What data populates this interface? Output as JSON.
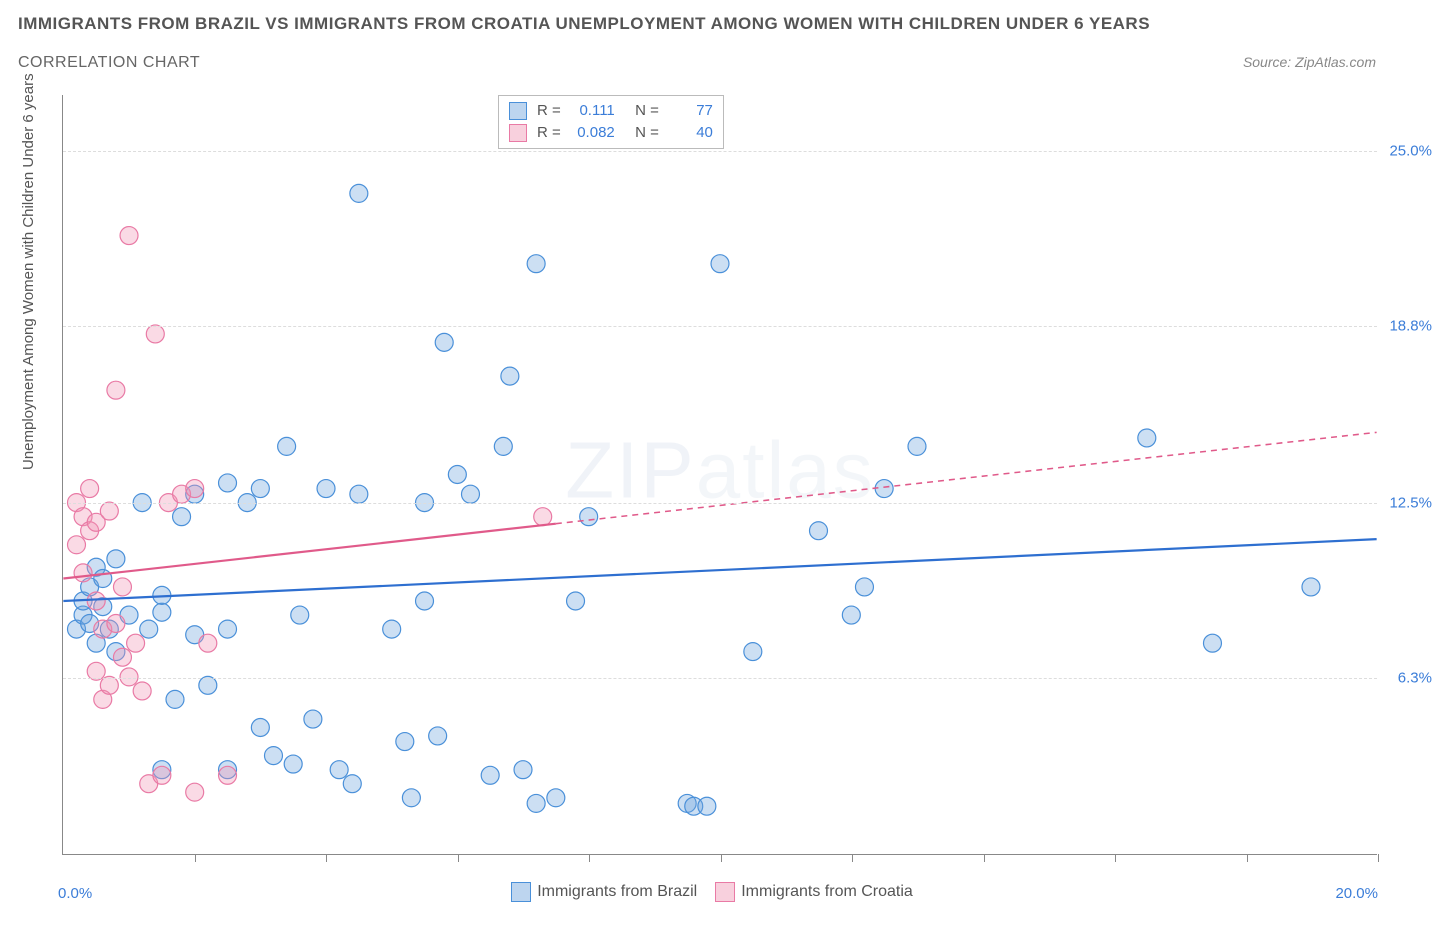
{
  "title": "IMMIGRANTS FROM BRAZIL VS IMMIGRANTS FROM CROATIA UNEMPLOYMENT AMONG WOMEN WITH CHILDREN UNDER 6 YEARS",
  "subtitle": "CORRELATION CHART",
  "source": "Source: ZipAtlas.com",
  "y_axis_label": "Unemployment Among Women with Children Under 6 years",
  "watermark_bold": "ZIP",
  "watermark_thin": "atlas",
  "chart": {
    "type": "scatter",
    "xlim": [
      0,
      20
    ],
    "ylim": [
      0,
      27
    ],
    "x_min_label": "0.0%",
    "x_max_label": "20.0%",
    "x_tick_positions": [
      2,
      4,
      6,
      8,
      10,
      12,
      14,
      16,
      18,
      20
    ],
    "y_ticks": [
      {
        "v": 6.3,
        "label": "6.3%"
      },
      {
        "v": 12.5,
        "label": "12.5%"
      },
      {
        "v": 18.8,
        "label": "18.8%"
      },
      {
        "v": 25.0,
        "label": "25.0%"
      }
    ],
    "background_color": "#ffffff",
    "grid_color": "#dddddd",
    "marker_radius": 9,
    "marker_stroke_width": 1.2,
    "trend_line_width": 2.2,
    "trend_dash": "6 5"
  },
  "series": [
    {
      "name": "Immigrants from Brazil",
      "fill": "rgba(108,162,220,0.35)",
      "stroke": "#4a90d9",
      "swatch_fill": "rgba(108,162,220,0.45)",
      "swatch_border": "#4a90d9",
      "r_value": "0.111",
      "n_value": "77",
      "trend": {
        "x1": 0,
        "y1": 9.0,
        "x2": 20,
        "y2": 11.2,
        "solid_until_x": 20,
        "color": "#2e6fd0"
      },
      "points": [
        [
          0.2,
          8.0
        ],
        [
          0.3,
          8.5
        ],
        [
          0.4,
          8.2
        ],
        [
          0.5,
          7.5
        ],
        [
          0.6,
          8.8
        ],
        [
          0.7,
          8.0
        ],
        [
          0.8,
          7.2
        ],
        [
          0.3,
          9.0
        ],
        [
          0.4,
          9.5
        ],
        [
          0.5,
          10.2
        ],
        [
          0.6,
          9.8
        ],
        [
          0.8,
          10.5
        ],
        [
          1.0,
          8.5
        ],
        [
          1.2,
          12.5
        ],
        [
          1.3,
          8.0
        ],
        [
          1.5,
          8.6
        ],
        [
          1.5,
          9.2
        ],
        [
          1.7,
          5.5
        ],
        [
          1.8,
          12.0
        ],
        [
          2.0,
          7.8
        ],
        [
          2.0,
          12.8
        ],
        [
          2.2,
          6.0
        ],
        [
          1.5,
          3.0
        ],
        [
          2.5,
          3.0
        ],
        [
          2.5,
          13.2
        ],
        [
          2.5,
          8.0
        ],
        [
          2.8,
          12.5
        ],
        [
          3.0,
          13.0
        ],
        [
          3.0,
          4.5
        ],
        [
          3.2,
          3.5
        ],
        [
          3.4,
          14.5
        ],
        [
          3.5,
          3.2
        ],
        [
          3.6,
          8.5
        ],
        [
          3.8,
          4.8
        ],
        [
          4.0,
          13.0
        ],
        [
          4.2,
          3.0
        ],
        [
          4.4,
          2.5
        ],
        [
          4.5,
          12.8
        ],
        [
          4.5,
          23.5
        ],
        [
          5.0,
          8.0
        ],
        [
          5.2,
          4.0
        ],
        [
          5.3,
          2.0
        ],
        [
          5.5,
          9.0
        ],
        [
          5.5,
          12.5
        ],
        [
          5.7,
          4.2
        ],
        [
          5.8,
          18.2
        ],
        [
          6.0,
          13.5
        ],
        [
          6.2,
          12.8
        ],
        [
          6.5,
          2.8
        ],
        [
          6.7,
          14.5
        ],
        [
          6.8,
          17.0
        ],
        [
          7.0,
          3.0
        ],
        [
          7.2,
          21.0
        ],
        [
          7.2,
          1.8
        ],
        [
          7.5,
          2.0
        ],
        [
          7.8,
          9.0
        ],
        [
          8.0,
          12.0
        ],
        [
          9.5,
          1.8
        ],
        [
          9.6,
          1.7
        ],
        [
          9.8,
          1.7
        ],
        [
          10.0,
          21.0
        ],
        [
          10.5,
          7.2
        ],
        [
          11.5,
          11.5
        ],
        [
          12.0,
          8.5
        ],
        [
          12.2,
          9.5
        ],
        [
          12.5,
          13.0
        ],
        [
          13.0,
          14.5
        ],
        [
          16.5,
          14.8
        ],
        [
          17.5,
          7.5
        ],
        [
          19.0,
          9.5
        ]
      ]
    },
    {
      "name": "Immigrants from Croatia",
      "fill": "rgba(240,150,180,0.35)",
      "stroke": "#e97aa5",
      "swatch_fill": "rgba(240,150,180,0.45)",
      "swatch_border": "#e97aa5",
      "r_value": "0.082",
      "n_value": "40",
      "trend": {
        "x1": 0,
        "y1": 9.8,
        "x2": 20,
        "y2": 15.0,
        "solid_until_x": 7.5,
        "color": "#e05a8a"
      },
      "points": [
        [
          0.2,
          12.5
        ],
        [
          0.2,
          11.0
        ],
        [
          0.3,
          12.0
        ],
        [
          0.3,
          10.0
        ],
        [
          0.4,
          13.0
        ],
        [
          0.4,
          11.5
        ],
        [
          0.5,
          6.5
        ],
        [
          0.5,
          9.0
        ],
        [
          0.5,
          11.8
        ],
        [
          0.6,
          5.5
        ],
        [
          0.6,
          8.0
        ],
        [
          0.7,
          6.0
        ],
        [
          0.7,
          12.2
        ],
        [
          0.8,
          8.2
        ],
        [
          0.8,
          16.5
        ],
        [
          0.9,
          7.0
        ],
        [
          0.9,
          9.5
        ],
        [
          1.0,
          22.0
        ],
        [
          1.0,
          6.3
        ],
        [
          1.1,
          7.5
        ],
        [
          1.2,
          5.8
        ],
        [
          1.3,
          2.5
        ],
        [
          1.4,
          18.5
        ],
        [
          1.5,
          2.8
        ],
        [
          1.6,
          12.5
        ],
        [
          1.8,
          12.8
        ],
        [
          2.0,
          2.2
        ],
        [
          2.0,
          13.0
        ],
        [
          2.2,
          7.5
        ],
        [
          2.5,
          2.8
        ],
        [
          7.3,
          12.0
        ]
      ]
    }
  ],
  "stats_labels": {
    "r": "R =",
    "n": "N ="
  },
  "legend_bottom": [
    {
      "swatch": 0,
      "label": "Immigrants from Brazil"
    },
    {
      "swatch": 1,
      "label": "Immigrants from Croatia"
    }
  ]
}
